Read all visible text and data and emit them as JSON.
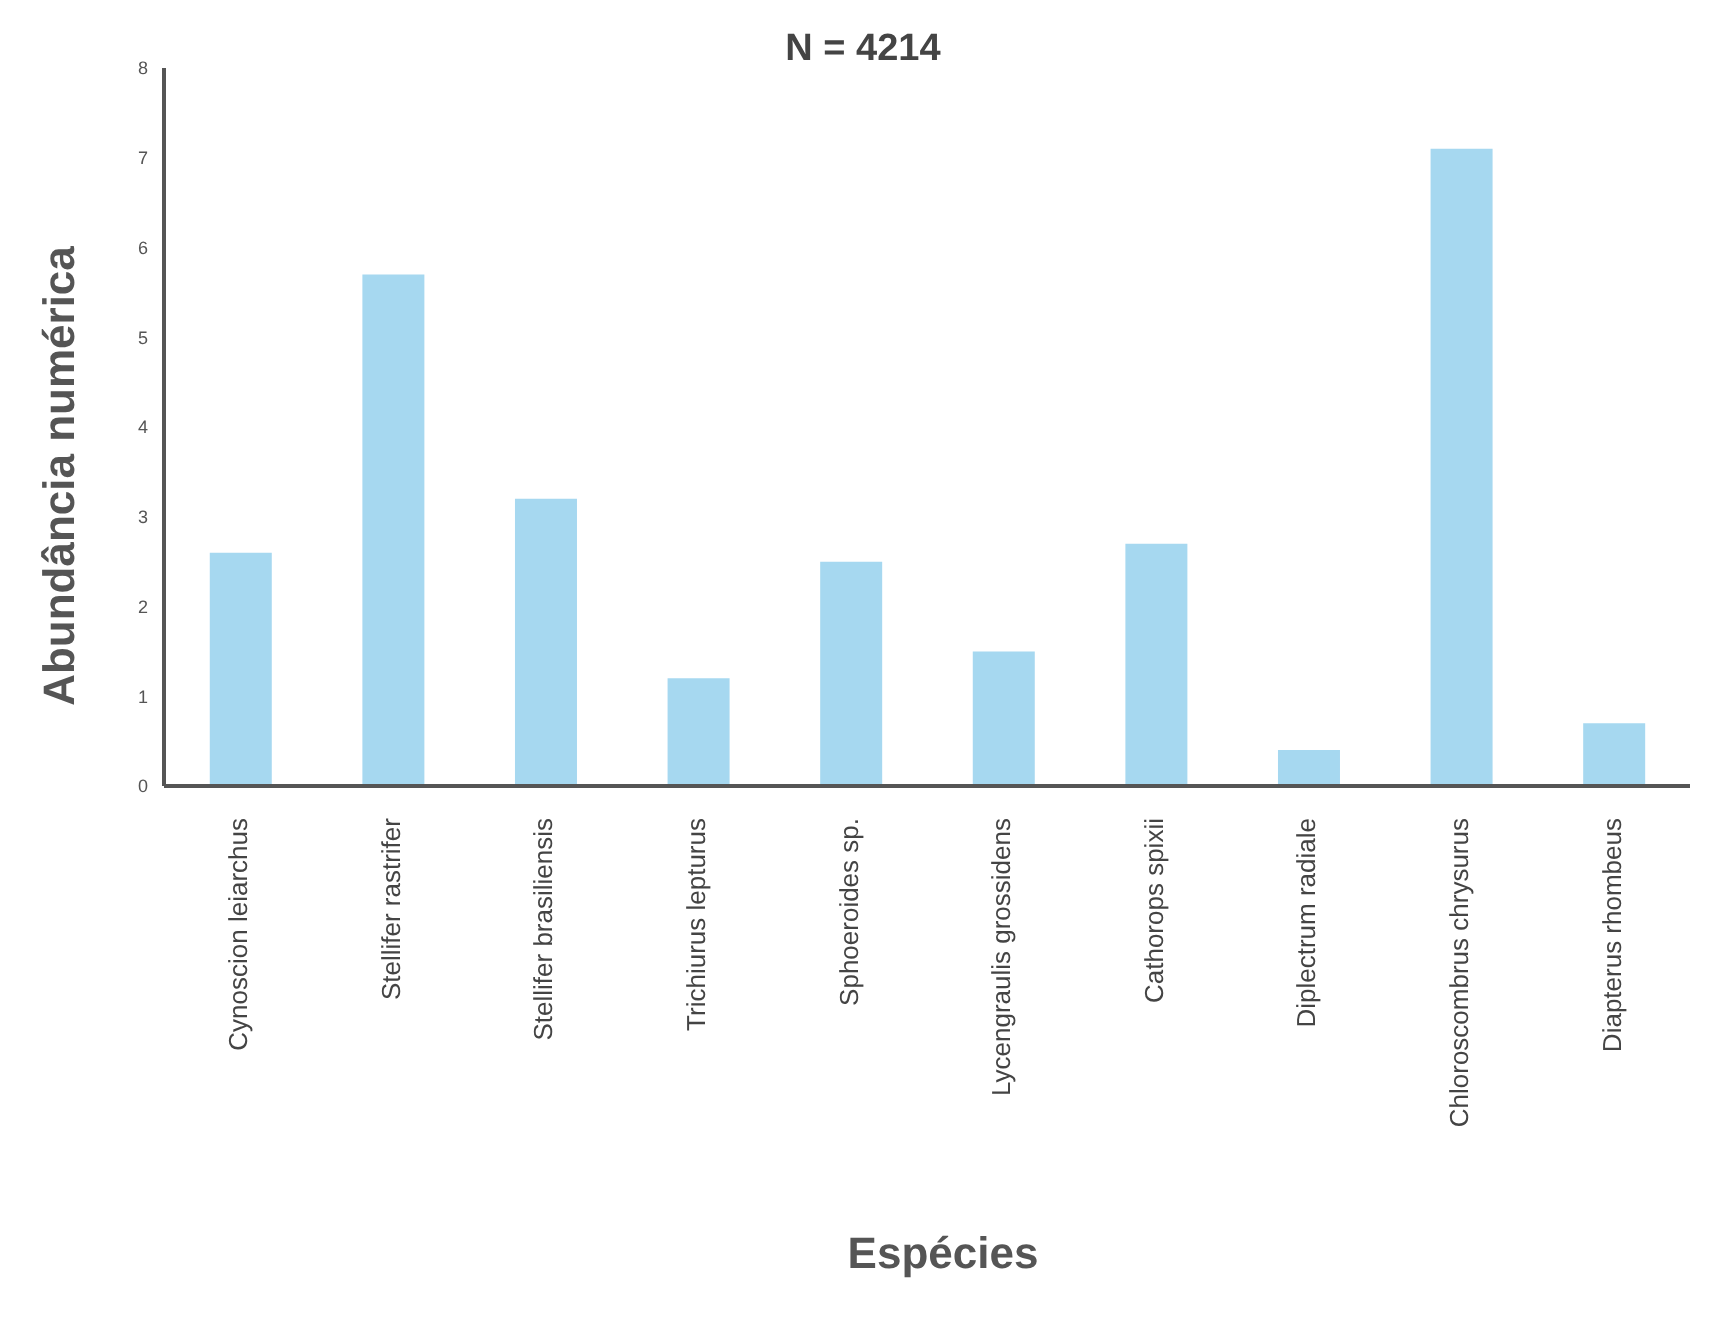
{
  "chart_data": {
    "type": "bar",
    "title": "N = 4214",
    "xlabel": "Espécies",
    "ylabel": "Abundância numérica",
    "categories": [
      "Cynoscion leiarchus",
      "Stellifer rastrifer",
      "Stellifer brasiliensis",
      "Trichiurus lepturus",
      "Sphoeroides sp.",
      "Lycengraulis grossidens",
      "Cathorops spixii",
      "Diplectrum radiale",
      "Chloroscombrus chrysurus",
      "Diapterus rhombeus"
    ],
    "values": [
      2.6,
      5.7,
      3.2,
      1.2,
      2.5,
      1.5,
      2.7,
      0.4,
      7.1,
      0.7
    ],
    "color": "#a6d8f0",
    "ylim": [
      0,
      8
    ],
    "yticks": [
      0,
      1,
      2,
      3,
      4,
      5,
      6,
      7,
      8
    ],
    "grid": false,
    "legend": false
  }
}
